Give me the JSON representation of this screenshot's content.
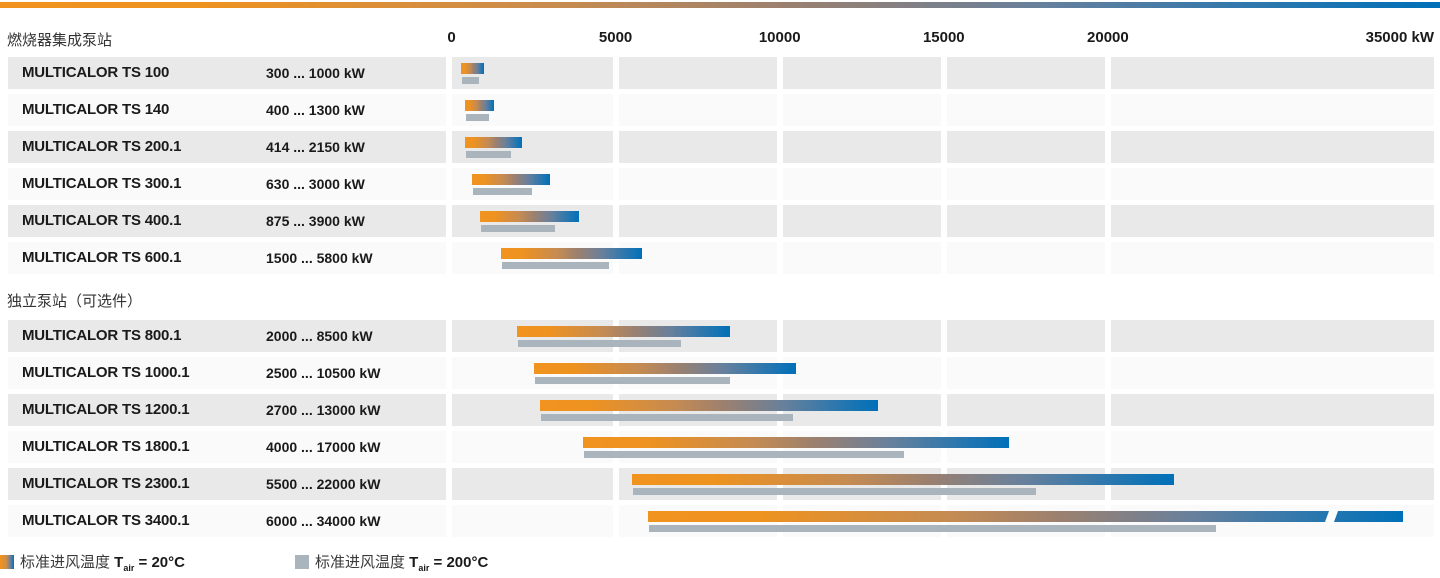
{
  "colors": {
    "orange": "#f0931f",
    "blue": "#0070b8",
    "gray_bar": "#a9b4bc",
    "row_gray": "#e9e9e9",
    "row_light": "#fafafa"
  },
  "chart_data": {
    "type": "bar",
    "unit": "kW",
    "axis": {
      "ticks_kw": [
        0,
        5000,
        10000,
        15000,
        20000
      ],
      "tick_labels": [
        "0",
        "5000",
        "10000",
        "15000",
        "20000"
      ],
      "end_label": "35000 kW",
      "axis_max_kw": 35000,
      "note": "last bar truncated with break slash"
    },
    "groups": [
      {
        "title": "燃烧器集成泵站",
        "rows": [
          {
            "model": "MULTICALOR TS 100",
            "range_label": "300 ... 1000 kW",
            "kw_min": 300,
            "kw_max": 1000,
            "kw_max_air200": 850
          },
          {
            "model": "MULTICALOR TS 140",
            "range_label": "400 ... 1300 kW",
            "kw_min": 400,
            "kw_max": 1300,
            "kw_max_air200": 1150
          },
          {
            "model": "MULTICALOR TS 200.1",
            "range_label": "414 ... 2150 kW",
            "kw_min": 414,
            "kw_max": 2150,
            "kw_max_air200": 1800
          },
          {
            "model": "MULTICALOR TS 300.1",
            "range_label": "630 ... 3000 kW",
            "kw_min": 630,
            "kw_max": 3000,
            "kw_max_air200": 2450
          },
          {
            "model": "MULTICALOR TS 400.1",
            "range_label": "875 ... 3900 kW",
            "kw_min": 875,
            "kw_max": 3900,
            "kw_max_air200": 3150
          },
          {
            "model": "MULTICALOR TS 600.1",
            "range_label": "1500 ... 5800 kW",
            "kw_min": 1500,
            "kw_max": 5800,
            "kw_max_air200": 4800
          }
        ]
      },
      {
        "title": "独立泵站（可选件）",
        "rows": [
          {
            "model": "MULTICALOR TS 800.1",
            "range_label": "2000 ... 8500 kW",
            "kw_min": 2000,
            "kw_max": 8500,
            "kw_max_air200": 7000
          },
          {
            "model": "MULTICALOR TS 1000.1",
            "range_label": "2500 ... 10500 kW",
            "kw_min": 2500,
            "kw_max": 10500,
            "kw_max_air200": 8500
          },
          {
            "model": "MULTICALOR TS 1200.1",
            "range_label": "2700 ... 13000 kW",
            "kw_min": 2700,
            "kw_max": 13000,
            "kw_max_air200": 10400
          },
          {
            "model": "MULTICALOR TS 1800.1",
            "range_label": "4000 ... 17000 kW",
            "kw_min": 4000,
            "kw_max": 17000,
            "kw_max_air200": 13800
          },
          {
            "model": "MULTICALOR TS 2300.1",
            "range_label": "5500 ... 22000 kW",
            "kw_min": 5500,
            "kw_max": 22000,
            "kw_max_air200": 17800
          },
          {
            "model": "MULTICALOR TS 3400.1",
            "range_label": "6000 ... 34000 kW",
            "kw_min": 6000,
            "kw_max": 34000,
            "kw_max_air200": 23300,
            "truncated": true
          }
        ]
      }
    ],
    "legend": [
      {
        "prefix": "标准进风温度 ",
        "t": "T",
        "sub": "air",
        "rest": " = 20°C",
        "swatch": "gradient"
      },
      {
        "prefix": "标准进风温度 ",
        "t": "T",
        "sub": "air",
        "rest": " = 200°C",
        "swatch": "solid"
      }
    ]
  }
}
